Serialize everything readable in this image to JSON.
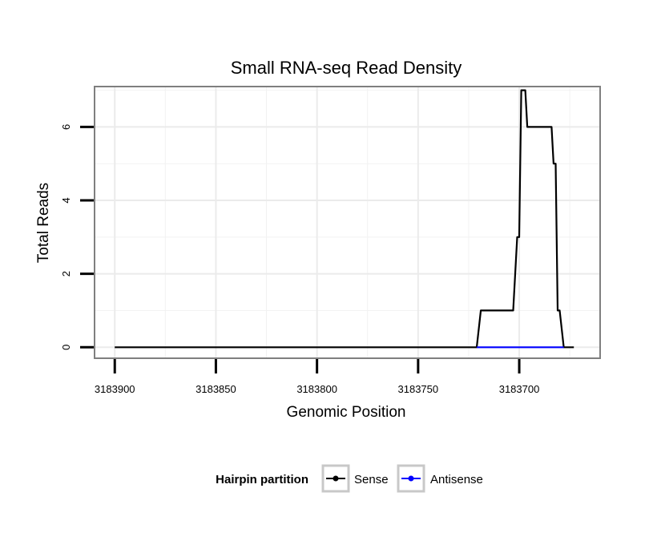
{
  "chart_data": {
    "type": "line",
    "title": "Small RNA-seq Read Density",
    "xlabel": "Genomic Position",
    "ylabel": "Total Reads",
    "xlim": [
      3183910,
      3183660
    ],
    "ylim": [
      -0.3,
      7.1
    ],
    "x_reversed": true,
    "x_ticks": [
      3183900,
      3183850,
      3183800,
      3183750,
      3183700
    ],
    "x_tick_labels": [
      "3183900",
      "3183850",
      "3183800",
      "3183750",
      "3183700"
    ],
    "y_ticks": [
      0,
      2,
      4,
      6
    ],
    "y_tick_labels": [
      "0",
      "2",
      "4",
      "6"
    ],
    "grid": true,
    "legend": {
      "title": "Hairpin partition",
      "position": "bottom"
    },
    "series": [
      {
        "name": "Sense",
        "color": "#000000",
        "points": [
          [
            3183900,
            0
          ],
          [
            3183721,
            0
          ],
          [
            3183719,
            1
          ],
          [
            3183703,
            1
          ],
          [
            3183701,
            3
          ],
          [
            3183700,
            3
          ],
          [
            3183699,
            7
          ],
          [
            3183697,
            7
          ],
          [
            3183696,
            6
          ],
          [
            3183684,
            6
          ],
          [
            3183683,
            5
          ],
          [
            3183682,
            5
          ],
          [
            3183681,
            1
          ],
          [
            3183680,
            1
          ],
          [
            3183678,
            0
          ],
          [
            3183673,
            0
          ]
        ]
      },
      {
        "name": "Antisense",
        "color": "#0000ff",
        "points": [
          [
            3183721,
            0
          ],
          [
            3183678,
            0
          ]
        ]
      }
    ]
  }
}
